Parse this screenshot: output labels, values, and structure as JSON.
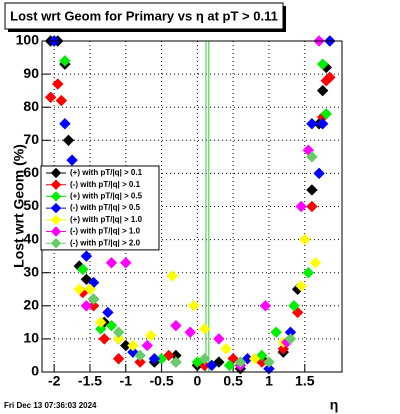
{
  "chart_data": {
    "type": "scatter",
    "title": "Lost wrt Geom for Primary vs  η at pT > 0.11",
    "y_label": "Lost wrt Geom (%)",
    "x_label": "η",
    "footer": "Fri Dec 13 07:36:03 2024",
    "xlim": [
      -2.17,
      2.02
    ],
    "ylim": [
      0,
      100
    ],
    "xticks": [
      -2,
      -1.5,
      -1,
      -0.5,
      0,
      0.5,
      1,
      1.5
    ],
    "yticks": [
      0,
      10,
      20,
      30,
      40,
      50,
      60,
      70,
      80,
      90,
      100
    ],
    "grid": true,
    "legend": "left",
    "vlines": [
      0.12,
      0.16
    ],
    "vline_color": "#33cc33",
    "series": [
      {
        "name": "(+) with pT/|q| > 0.1",
        "color": "#000000",
        "x": [
          -2.05,
          -2.0,
          -1.95,
          -1.85,
          -1.8,
          -1.65,
          -1.55,
          -1.45,
          -1.3,
          -1.0,
          -0.6,
          -0.3,
          0.0,
          0.3,
          0.6,
          0.9,
          1.2,
          1.4,
          1.6,
          1.7,
          1.75,
          1.8
        ],
        "values": [
          100,
          100,
          100,
          93,
          70,
          32,
          28,
          22,
          15,
          8,
          3,
          5,
          2,
          3,
          1,
          4,
          6,
          25,
          55,
          75,
          85,
          92
        ]
      },
      {
        "name": "(-) with pT/|q| > 0.1",
        "color": "#ff0000",
        "x": [
          -2.05,
          -1.95,
          -1.9,
          -1.8,
          -1.6,
          -1.45,
          -1.3,
          -1.1,
          -0.8,
          -0.4,
          0.1,
          0.5,
          0.9,
          1.2,
          1.4,
          1.6,
          1.75,
          1.8,
          1.85
        ],
        "values": [
          83,
          87,
          82,
          60,
          24,
          20,
          10,
          4,
          3,
          5,
          2,
          4,
          3,
          7,
          18,
          50,
          77,
          88,
          89
        ]
      },
      {
        "name": "(+) with pT/|q| > 0.5",
        "color": "#00ee00",
        "x": [
          -1.85,
          -1.75,
          -1.6,
          -1.5,
          -1.35,
          -1.2,
          -0.9,
          -0.5,
          0.0,
          0.45,
          0.9,
          1.1,
          1.35,
          1.55,
          1.75,
          1.8
        ],
        "values": [
          94,
          45,
          31,
          25,
          13,
          14,
          6,
          4,
          3,
          2,
          5,
          12,
          20,
          30,
          93,
          78
        ]
      },
      {
        "name": "(-) with pT/|q| > 0.5",
        "color": "#0000ff",
        "x": [
          -2.0,
          -1.85,
          -1.75,
          -1.7,
          -1.55,
          -1.45,
          -1.25,
          -1.1,
          -0.9,
          -0.6,
          -0.3,
          0.2,
          0.7,
          1.0,
          1.3,
          1.6,
          1.7,
          1.75,
          1.85
        ],
        "values": [
          100,
          75,
          64,
          57,
          35,
          27,
          18,
          10,
          6,
          4,
          3,
          2,
          4,
          1,
          12,
          75,
          60,
          75,
          100
        ]
      },
      {
        "name": "(+) with pT/|q| > 1.0",
        "color": "#ffff00",
        "x": [
          -1.65,
          -1.5,
          -1.35,
          -1.1,
          -0.9,
          -0.65,
          -0.35,
          -0.05,
          0.1,
          0.4,
          0.8,
          1.2,
          1.45,
          1.5,
          1.65
        ],
        "values": [
          25,
          25,
          15,
          10,
          8,
          11,
          29,
          20,
          13,
          7,
          4,
          9,
          26,
          40,
          33
        ]
      },
      {
        "name": "(-) with pT/|q| > 1.0",
        "color": "#ff00ff",
        "x": [
          -1.55,
          -1.2,
          -1.0,
          -0.7,
          -0.3,
          -0.1,
          0.3,
          0.6,
          0.95,
          1.25,
          1.45,
          1.55,
          1.7
        ],
        "values": [
          20,
          33,
          33,
          8,
          14,
          12,
          10,
          2,
          20,
          9,
          50,
          67,
          100
        ]
      },
      {
        "name": "(-) with pT/|q| > 2.0",
        "color": "#66cc66",
        "x": [
          -1.45,
          -1.1,
          -0.8,
          -0.3,
          0.1,
          0.6,
          1.0,
          1.3,
          1.6
        ],
        "values": [
          22,
          12,
          5,
          3,
          4,
          3,
          3,
          10,
          65
        ]
      }
    ]
  }
}
